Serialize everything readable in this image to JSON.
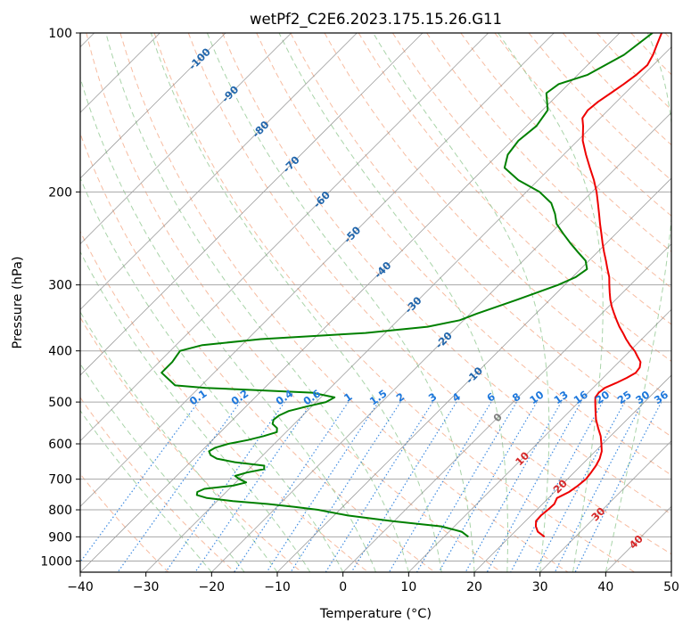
{
  "chart_data": {
    "type": "skew-t",
    "title": "wetPf2_C2E6.2023.175.15.26.G11",
    "xlabel": "Temperature (°C)",
    "ylabel": "Pressure (hPa)",
    "xlim": [
      -40,
      50
    ],
    "ylim_hpa": [
      1050,
      100
    ],
    "y_scale": "log",
    "grid": true,
    "x_ticks": [
      "−40",
      "−30",
      "−20",
      "−10",
      "0",
      "10",
      "20",
      "30",
      "40",
      "50"
    ],
    "y_ticks": [
      "100",
      "200",
      "300",
      "400",
      "500",
      "600",
      "700",
      "800",
      "900",
      "1000"
    ],
    "series": [
      {
        "color": "#ee0000",
        "points": [
          [
            900,
            25.3
          ],
          [
            880,
            23.5
          ],
          [
            860,
            22.4
          ],
          [
            840,
            21.6
          ],
          [
            820,
            21.5
          ],
          [
            800,
            21.7
          ],
          [
            780,
            21.8
          ],
          [
            760,
            21.3
          ],
          [
            740,
            22.2
          ],
          [
            720,
            22.6
          ],
          [
            700,
            22.8
          ],
          [
            680,
            22.6
          ],
          [
            660,
            22.3
          ],
          [
            640,
            21.8
          ],
          [
            620,
            21.0
          ],
          [
            600,
            19.8
          ],
          [
            580,
            18.5
          ],
          [
            560,
            16.9
          ],
          [
            540,
            15.3
          ],
          [
            520,
            13.9
          ],
          [
            500,
            12.5
          ],
          [
            490,
            11.8
          ],
          [
            480,
            11.6
          ],
          [
            470,
            11.8
          ],
          [
            460,
            12.8
          ],
          [
            450,
            13.6
          ],
          [
            440,
            14.2
          ],
          [
            430,
            14.0
          ],
          [
            420,
            13.3
          ],
          [
            410,
            12.0
          ],
          [
            400,
            10.7
          ],
          [
            390,
            9.1
          ],
          [
            380,
            7.6
          ],
          [
            370,
            6.2
          ],
          [
            360,
            4.7
          ],
          [
            350,
            3.3
          ],
          [
            340,
            1.9
          ],
          [
            330,
            0.5
          ],
          [
            320,
            -0.8
          ],
          [
            310,
            -2.0
          ],
          [
            300,
            -3.2
          ],
          [
            290,
            -4.4
          ],
          [
            280,
            -5.9
          ],
          [
            270,
            -7.4
          ],
          [
            260,
            -9.0
          ],
          [
            250,
            -10.6
          ],
          [
            240,
            -12.2
          ],
          [
            230,
            -13.9
          ],
          [
            220,
            -15.6
          ],
          [
            210,
            -17.4
          ],
          [
            200,
            -19.3
          ],
          [
            190,
            -21.5
          ],
          [
            180,
            -24.0
          ],
          [
            170,
            -26.6
          ],
          [
            160,
            -29.2
          ],
          [
            150,
            -31.4
          ],
          [
            145,
            -32.7
          ],
          [
            140,
            -33.1
          ],
          [
            135,
            -32.8
          ],
          [
            130,
            -32.2
          ],
          [
            125,
            -31.6
          ],
          [
            120,
            -31.1
          ],
          [
            115,
            -30.9
          ],
          [
            110,
            -31.6
          ],
          [
            105,
            -32.6
          ],
          [
            100,
            -33.6
          ]
        ]
      },
      {
        "color": "#008000",
        "points": [
          [
            900,
            13.7
          ],
          [
            880,
            11.9
          ],
          [
            860,
            8.0
          ],
          [
            840,
            -0.4
          ],
          [
            820,
            -7.9
          ],
          [
            800,
            -13.3
          ],
          [
            790,
            -17.3
          ],
          [
            780,
            -21.8
          ],
          [
            770,
            -27.6
          ],
          [
            760,
            -32.0
          ],
          [
            750,
            -34.0
          ],
          [
            740,
            -34.4
          ],
          [
            730,
            -33.8
          ],
          [
            720,
            -29.9
          ],
          [
            710,
            -28.4
          ],
          [
            700,
            -29.9
          ],
          [
            690,
            -31.1
          ],
          [
            680,
            -29.8
          ],
          [
            670,
            -27.7
          ],
          [
            660,
            -28.2
          ],
          [
            650,
            -33.2
          ],
          [
            640,
            -36.5
          ],
          [
            630,
            -38.0
          ],
          [
            620,
            -38.8
          ],
          [
            610,
            -38.4
          ],
          [
            600,
            -37.0
          ],
          [
            590,
            -34.6
          ],
          [
            580,
            -32.8
          ],
          [
            570,
            -31.4
          ],
          [
            560,
            -32.0
          ],
          [
            550,
            -33.3
          ],
          [
            540,
            -33.8
          ],
          [
            530,
            -33.6
          ],
          [
            520,
            -32.8
          ],
          [
            510,
            -30.8
          ],
          [
            500,
            -28.5
          ],
          [
            490,
            -27.9
          ],
          [
            480,
            -32.0
          ],
          [
            470,
            -49.0
          ],
          [
            465,
            -54.0
          ],
          [
            440,
            -58.0
          ],
          [
            420,
            -58.0
          ],
          [
            400,
            -58.5
          ],
          [
            390,
            -56.0
          ],
          [
            380,
            -48.0
          ],
          [
            370,
            -33.0
          ],
          [
            360,
            -24.5
          ],
          [
            350,
            -20.6
          ],
          [
            340,
            -19.0
          ],
          [
            330,
            -17.0
          ],
          [
            320,
            -15.0
          ],
          [
            310,
            -13.0
          ],
          [
            300,
            -11.0
          ],
          [
            290,
            -9.5
          ],
          [
            280,
            -9.0
          ],
          [
            270,
            -10.5
          ],
          [
            260,
            -13.0
          ],
          [
            250,
            -15.5
          ],
          [
            240,
            -18.0
          ],
          [
            230,
            -20.5
          ],
          [
            220,
            -22.3
          ],
          [
            210,
            -24.5
          ],
          [
            200,
            -28.0
          ],
          [
            190,
            -33.0
          ],
          [
            180,
            -37.0
          ],
          [
            170,
            -38.5
          ],
          [
            160,
            -39.0
          ],
          [
            150,
            -38.5
          ],
          [
            140,
            -39.2
          ],
          [
            130,
            -42.0
          ],
          [
            125,
            -41.5
          ],
          [
            120,
            -38.5
          ],
          [
            110,
            -36.0
          ],
          [
            100,
            -35.0
          ]
        ]
      }
    ],
    "isotherm_labels": [
      "-100",
      "-90",
      "-80",
      "-70",
      "-60",
      "-50",
      "-40",
      "-30",
      "-20",
      "-10",
      "0",
      "10",
      "20",
      "30",
      "40"
    ],
    "mixing_ratio_labels": [
      "0.1",
      "0.2",
      "0.4",
      "0.6",
      "1",
      "1.5",
      "2",
      "3",
      "4",
      "6",
      "8",
      "10",
      "13",
      "16",
      "20",
      "25",
      "30",
      "36"
    ],
    "colors": {
      "temperature": "#ee0000",
      "dewpoint": "#008000",
      "isotherm": "#777777",
      "dry_adiabat": "#f4a582",
      "moist_adiabat": "#8cc68c",
      "mixing_ratio": "#1e78dc",
      "isotherm_label_cold": "#2166ac",
      "isotherm_label_warm": "#d62728"
    }
  }
}
